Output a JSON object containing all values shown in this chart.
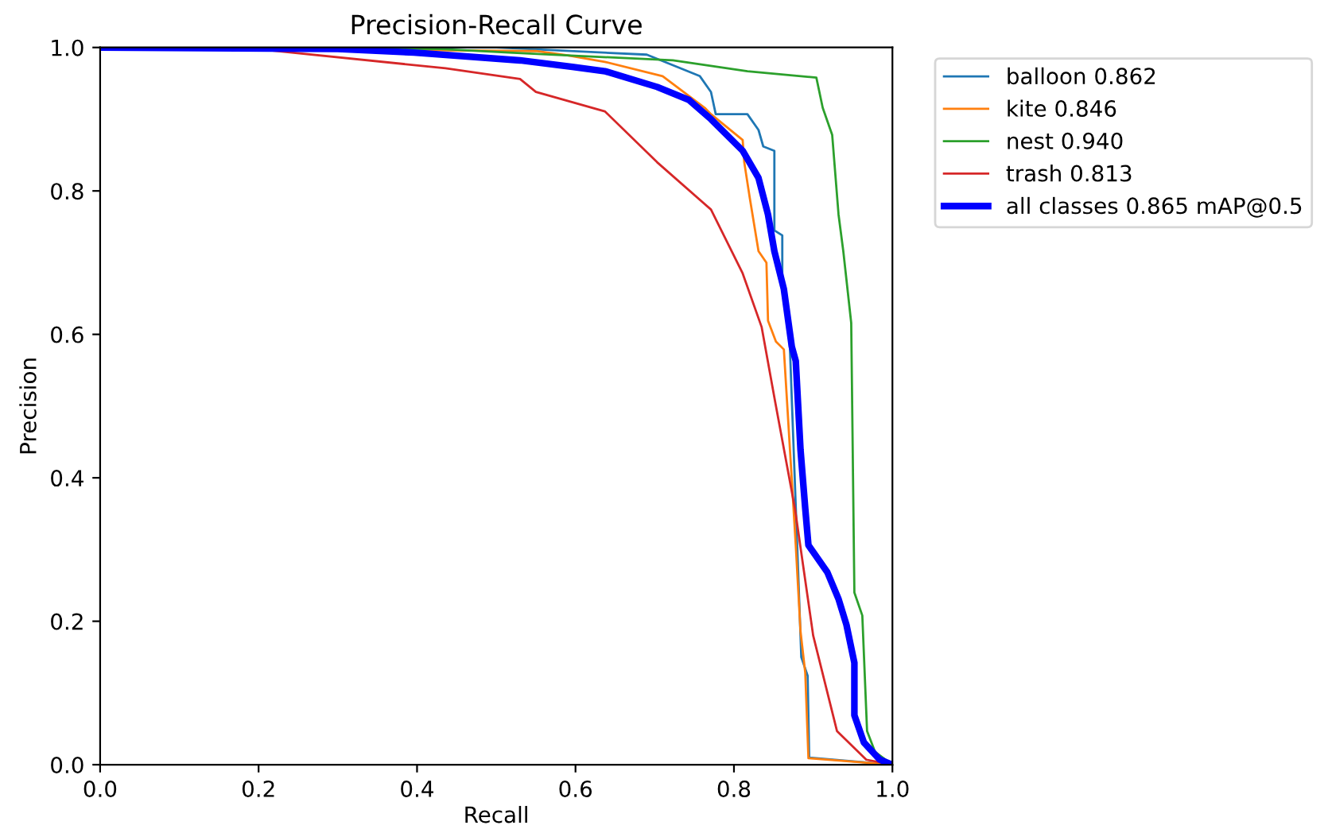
{
  "chart_data": {
    "type": "line",
    "title": "Precision-Recall Curve",
    "xlabel": "Recall",
    "ylabel": "Precision",
    "xlim": [
      0,
      1
    ],
    "ylim": [
      0,
      1
    ],
    "xticks": [
      {
        "value": 0,
        "label": "0.0"
      },
      {
        "value": 0.2,
        "label": "0.2"
      },
      {
        "value": 0.4,
        "label": "0.4"
      },
      {
        "value": 0.6,
        "label": "0.6"
      },
      {
        "value": 0.8,
        "label": "0.8"
      },
      {
        "value": 1,
        "label": "1.0"
      }
    ],
    "yticks": [
      {
        "value": 0,
        "label": "0.0"
      },
      {
        "value": 0.2,
        "label": "0.2"
      },
      {
        "value": 0.4,
        "label": "0.4"
      },
      {
        "value": 0.6,
        "label": "0.6"
      },
      {
        "value": 0.8,
        "label": "0.8"
      },
      {
        "value": 1,
        "label": "1.0"
      }
    ],
    "legend": "top right",
    "grid": false,
    "series": [
      {
        "name": "balloon 0.862",
        "color": "#1f77b4",
        "x": [
          0,
          0.5,
          0.69,
          0.757,
          0.771,
          0.777,
          0.817,
          0.831,
          0.837,
          0.851,
          0.851,
          0.861,
          0.861,
          0.87,
          0.875,
          0.88,
          0.885,
          0.893,
          0.895,
          1.0
        ],
        "values": [
          1.0,
          1.0,
          0.99,
          0.96,
          0.938,
          0.907,
          0.907,
          0.885,
          0.862,
          0.856,
          0.745,
          0.738,
          0.678,
          0.6,
          0.45,
          0.3,
          0.15,
          0.124,
          0.01,
          0
        ]
      },
      {
        "name": "kite 0.846",
        "color": "#ff7f0e",
        "x": [
          0,
          0.55,
          0.59,
          0.637,
          0.71,
          0.763,
          0.771,
          0.811,
          0.813,
          0.82,
          0.831,
          0.841,
          0.843,
          0.853,
          0.863,
          0.878,
          0.884,
          0.89,
          0.894,
          1.0
        ],
        "values": [
          1.0,
          0.995,
          0.989,
          0.98,
          0.96,
          0.916,
          0.907,
          0.871,
          0.84,
          0.79,
          0.716,
          0.7,
          0.619,
          0.59,
          0.579,
          0.306,
          0.186,
          0.128,
          0.009,
          0
        ]
      },
      {
        "name": "nest 0.940",
        "color": "#2ca02c",
        "x": [
          0,
          0.43,
          0.516,
          0.723,
          0.817,
          0.904,
          0.912,
          0.924,
          0.932,
          0.938,
          0.948,
          0.952,
          0.962,
          0.968,
          0.978,
          1.0
        ],
        "values": [
          1.0,
          0.998,
          0.993,
          0.982,
          0.967,
          0.958,
          0.916,
          0.878,
          0.767,
          0.716,
          0.616,
          0.24,
          0.208,
          0.047,
          0.018,
          0
        ]
      },
      {
        "name": "trash 0.813",
        "color": "#d62728",
        "x": [
          0,
          0.215,
          0.436,
          0.53,
          0.55,
          0.637,
          0.703,
          0.771,
          0.811,
          0.835,
          0.851,
          0.877,
          0.9,
          0.93,
          0.967,
          1.0
        ],
        "values": [
          1.0,
          0.996,
          0.971,
          0.956,
          0.938,
          0.911,
          0.84,
          0.774,
          0.685,
          0.61,
          0.512,
          0.357,
          0.18,
          0.047,
          0.007,
          0
        ]
      },
      {
        "name": "all classes 0.865 mAP@0.5",
        "color": "#0000ff",
        "x": [
          0,
          0.3,
          0.396,
          0.53,
          0.596,
          0.637,
          0.703,
          0.743,
          0.771,
          0.811,
          0.831,
          0.843,
          0.851,
          0.863,
          0.873,
          0.878,
          0.884,
          0.89,
          0.894,
          0.918,
          0.932,
          0.942,
          0.952,
          0.952,
          0.964,
          0.984,
          1.0
        ],
        "values": [
          1.0,
          0.998,
          0.993,
          0.982,
          0.973,
          0.967,
          0.945,
          0.927,
          0.9,
          0.856,
          0.818,
          0.767,
          0.716,
          0.663,
          0.583,
          0.563,
          0.439,
          0.357,
          0.306,
          0.268,
          0.231,
          0.195,
          0.142,
          0.069,
          0.031,
          0.007,
          0
        ]
      }
    ]
  }
}
